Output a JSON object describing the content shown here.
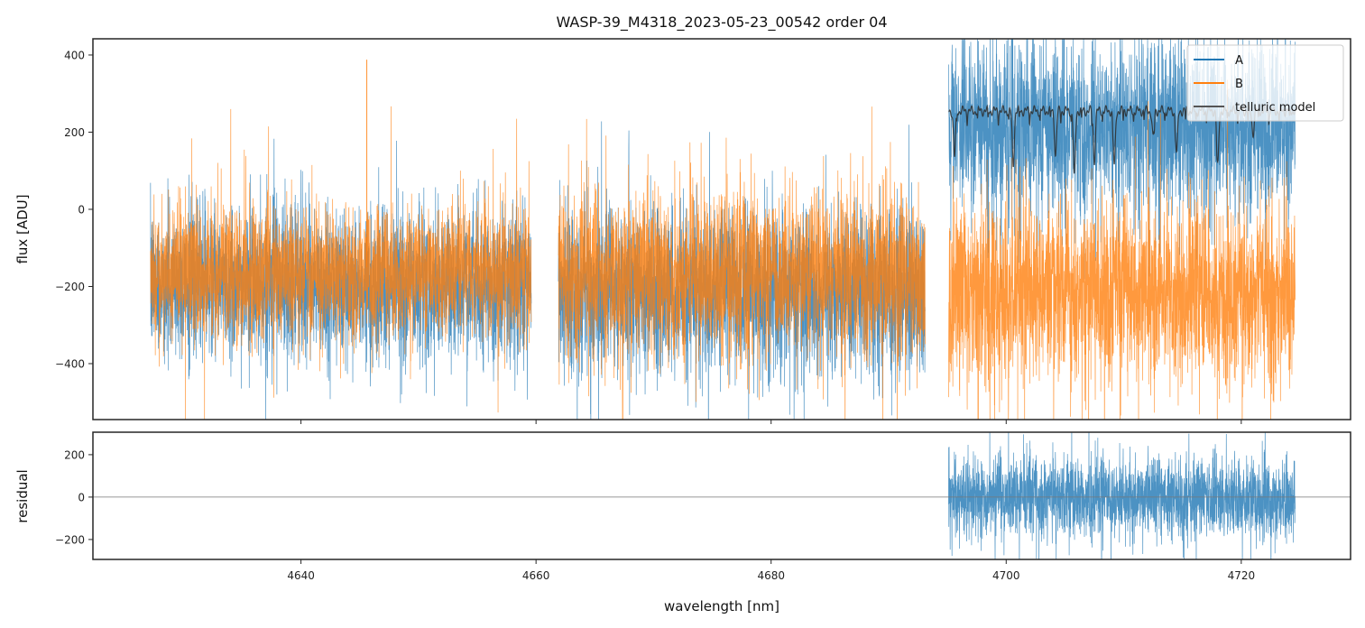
{
  "chart_data": [
    {
      "type": "line",
      "panel": "main",
      "title": "WASP-39_M4318_2023-05-23_00542  order 04",
      "xlabel": "",
      "ylabel": "flux [ADU]",
      "xlim": [
        4622.3,
        4729.3
      ],
      "ylim": [
        -545,
        442
      ],
      "xticks": [
        4640,
        4660,
        4680,
        4700,
        4720
      ],
      "xtick_labels_shown": false,
      "yticks": [
        -400,
        -200,
        0,
        200,
        400
      ],
      "ytick_labels": [
        "−400",
        "−200",
        "0",
        "200",
        "400"
      ],
      "grid": false,
      "legend": {
        "position": "top-right",
        "entries": [
          {
            "label": "A",
            "color": "#1f77b4"
          },
          {
            "label": "B",
            "color": "#ff7f0e"
          },
          {
            "label": "telluric model",
            "color": "#2b2b2b"
          }
        ]
      },
      "series": [
        {
          "name": "A",
          "color": "#1f77b4",
          "segments": [
            {
              "x_range": [
                4627.2,
                4659.6
              ],
              "mean": -195,
              "noise_sigma": 95
            },
            {
              "x_range": [
                4661.9,
                4693.1
              ],
              "mean": -215,
              "noise_sigma": 105
            },
            {
              "x_range": [
                4695.1,
                4724.6
              ],
              "mean": 215,
              "noise_sigma": 110
            }
          ]
        },
        {
          "name": "B",
          "color": "#ff7f0e",
          "segments": [
            {
              "x_range": [
                4627.2,
                4659.6
              ],
              "mean": -160,
              "noise_sigma": 85
            },
            {
              "x_range": [
                4661.9,
                4693.1
              ],
              "mean": -170,
              "noise_sigma": 105
            },
            {
              "x_range": [
                4695.1,
                4724.6
              ],
              "mean": -215,
              "noise_sigma": 115
            }
          ],
          "peak": {
            "x": 4645.6,
            "y": 388
          }
        },
        {
          "name": "telluric model",
          "color": "#2b2b2b",
          "x_range": [
            4695.1,
            4724.6
          ],
          "continuum": 255,
          "absorption_lines": [
            {
              "x": 4695.6,
              "depth": 120
            },
            {
              "x": 4700.6,
              "depth": 140
            },
            {
              "x": 4704.2,
              "depth": 115
            },
            {
              "x": 4705.8,
              "depth": 175
            },
            {
              "x": 4707.5,
              "depth": 130
            },
            {
              "x": 4709.2,
              "depth": 145
            },
            {
              "x": 4712.5,
              "depth": 70
            },
            {
              "x": 4714.5,
              "depth": 110
            },
            {
              "x": 4718.0,
              "depth": 145
            },
            {
              "x": 4721.0,
              "depth": 60
            }
          ]
        }
      ]
    },
    {
      "type": "line",
      "panel": "residual",
      "xlabel": "wavelength [nm]",
      "ylabel": "residual",
      "xlim": [
        4622.3,
        4729.3
      ],
      "ylim": [
        -294,
        306
      ],
      "xticks": [
        4640,
        4660,
        4680,
        4700,
        4720
      ],
      "xtick_labels": [
        "4640",
        "4660",
        "4680",
        "4700",
        "4720"
      ],
      "yticks": [
        -200,
        0,
        200
      ],
      "ytick_labels": [
        "−200",
        "0",
        "200"
      ],
      "hline": {
        "y": 0,
        "color": "#777777"
      },
      "series": [
        {
          "name": "residual A",
          "color": "#1f77b4",
          "segments": [
            {
              "x_range": [
                4695.1,
                4724.6
              ],
              "mean": 0,
              "noise_sigma": 95
            }
          ]
        }
      ]
    }
  ]
}
